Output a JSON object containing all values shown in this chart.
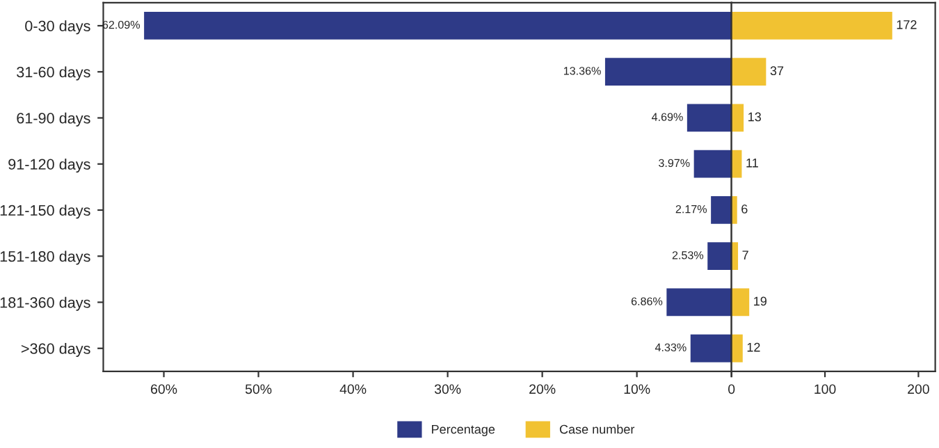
{
  "chart_data": [
    {
      "type": "bar",
      "orientation": "horizontal",
      "categories": [
        "0-30 days",
        "31-60 days",
        "61-90 days",
        "91-120 days",
        "121-150 days",
        "151-180 days",
        "181-360 days",
        ">360 days"
      ],
      "series": [
        {
          "name": "Percentage",
          "color": "#2e3a87",
          "values": [
            62.09,
            13.36,
            4.69,
            3.97,
            2.17,
            2.53,
            6.86,
            4.33
          ],
          "value_labels": [
            "62.09%",
            "13.36%",
            "4.69%",
            "3.97%",
            "2.17%",
            "2.53%",
            "6.86%",
            "4.33%"
          ]
        }
      ],
      "xlim": [
        66.4,
        0
      ],
      "xticks": [
        {
          "value": 60,
          "label": "60%"
        },
        {
          "value": 50,
          "label": "50%"
        },
        {
          "value": 40,
          "label": "40%"
        },
        {
          "value": 30,
          "label": "30%"
        },
        {
          "value": 20,
          "label": "20%"
        },
        {
          "value": 10,
          "label": "10%"
        },
        {
          "value": 0,
          "label": "0"
        }
      ],
      "legend": "bottom",
      "grid": false
    },
    {
      "type": "bar",
      "orientation": "horizontal",
      "series": [
        {
          "name": "Case number",
          "color": "#f1c232",
          "values": [
            172,
            37,
            13,
            11,
            6,
            7,
            19,
            12
          ]
        }
      ],
      "data_labels": true,
      "xlim": [
        0,
        218
      ],
      "xticks": [
        {
          "value": 0,
          "label": null
        },
        100,
        200
      ],
      "tick_labels": "x",
      "legend": "bottom",
      "grid": false
    }
  ]
}
